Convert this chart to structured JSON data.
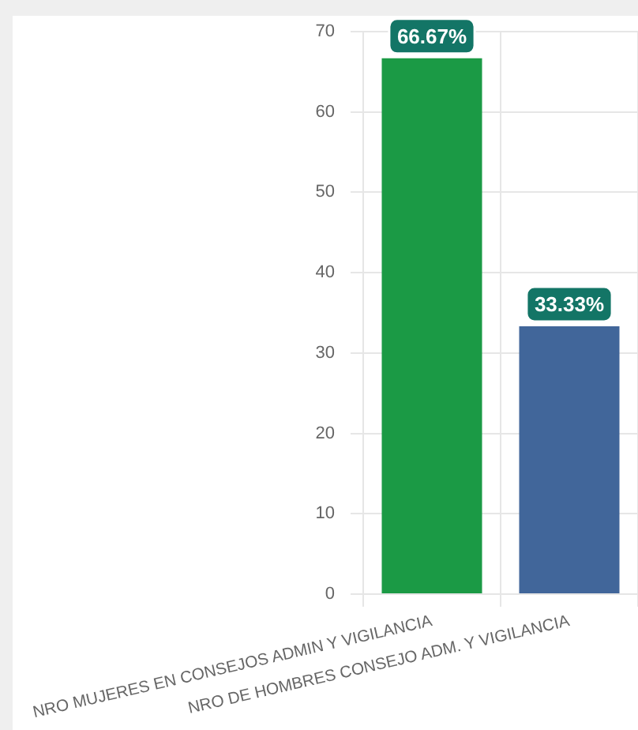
{
  "chart_data": {
    "type": "bar",
    "categories": [
      "NRO MUJERES EN CONSEJOS ADMIN Y VIGILANCIA",
      "NRO DE HOMBRES CONSEJO ADM. Y VIGILANCIA"
    ],
    "values": [
      66.67,
      33.33
    ],
    "colors": [
      "#1b9a45",
      "#41669a"
    ],
    "value_labels": [
      "66.67%",
      "33.33%"
    ],
    "ylim": [
      0,
      70
    ],
    "yticks": [
      0,
      10,
      20,
      30,
      40,
      50,
      60,
      70
    ],
    "grid": true
  }
}
